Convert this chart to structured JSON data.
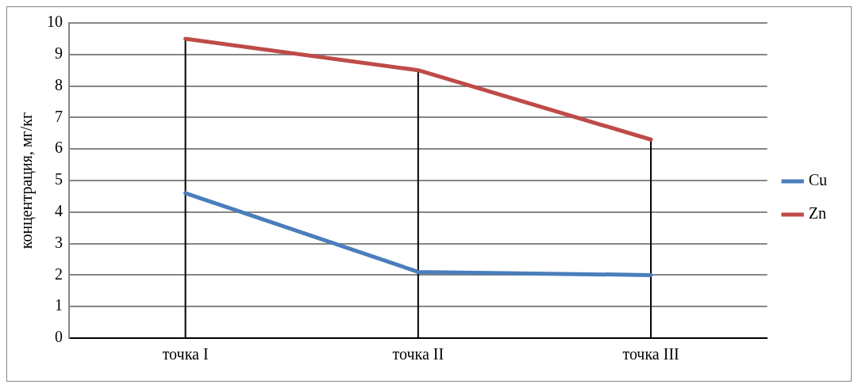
{
  "chart_data": {
    "type": "line",
    "ylabel": "концентрация, мг/кг",
    "categories": [
      "точка I",
      "точка II",
      "точка III"
    ],
    "series": [
      {
        "name": "Cu",
        "color": "#4a7ebb",
        "values": [
          4.6,
          2.1,
          2.0
        ]
      },
      {
        "name": "Zn",
        "color": "#be4b48",
        "values": [
          9.5,
          8.5,
          6.3
        ]
      }
    ],
    "ref_lines": [
      {
        "axis": "x",
        "value": "точка I",
        "color": "#000000"
      },
      {
        "axis": "x",
        "value": "точка II",
        "color": "#000000"
      },
      {
        "axis": "x",
        "value": "точка III",
        "color": "#000000"
      }
    ],
    "ylim": [
      0,
      10
    ],
    "yticks": [
      0,
      1,
      2,
      3,
      4,
      5,
      6,
      7,
      8,
      9,
      10
    ],
    "grid": "y",
    "legend": "right",
    "marker": "none",
    "line_style": "solid"
  }
}
